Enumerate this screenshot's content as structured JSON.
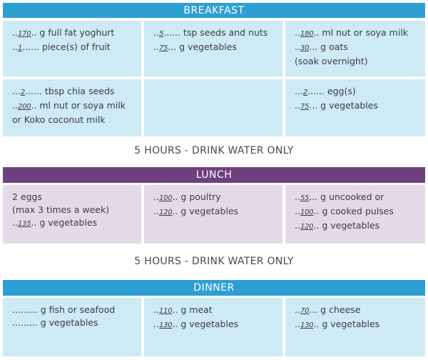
{
  "colors": {
    "breakfast_header": "#2e9fd4",
    "breakfast_cell": "#cdeaf5",
    "lunch_header": "#6e3f7f",
    "lunch_cell": "#e2dbe7",
    "dinner_header": "#2e9fd4",
    "dinner_cell": "#cdeaf5"
  },
  "breakfast": {
    "title": "BREAKFAST",
    "rows": [
      [
        [
          {
            "pre": "..",
            "num": "170",
            "post": ".. g full fat yoghurt"
          },
          {
            "pre": "..",
            "num": "1",
            "post": "...... piece(s) of fruit"
          }
        ],
        [
          {
            "pre": "..",
            "num": "5",
            "post": "...... tsp seeds and nuts"
          },
          {
            "pre": "..",
            "num": "75",
            "post": "... g vegetables"
          }
        ],
        [
          {
            "pre": "..",
            "num": "180",
            "post": ".. ml nut or soya milk"
          },
          {
            "pre": "..",
            "num": "30",
            "post": "... g oats"
          },
          {
            "pre": "",
            "num": "",
            "post": "(soak overnight)"
          }
        ]
      ],
      [
        [
          {
            "pre": "...",
            "num": "2",
            "post": "...... tbsp chia seeds"
          },
          {
            "pre": "..",
            "num": "200",
            "post": ".. ml nut or soya milk"
          },
          {
            "pre": "",
            "num": "",
            "post": "or Koko coconut milk"
          }
        ],
        [],
        [
          {
            "pre": "...",
            "num": "2",
            "post": "...... egg(s)"
          },
          {
            "pre": "..",
            "num": "75",
            "post": "... g vegetables"
          }
        ]
      ]
    ]
  },
  "note1": "5 HOURS - DRINK WATER ONLY",
  "lunch": {
    "title": "LUNCH",
    "rows": [
      [
        [
          {
            "pre": "",
            "num": "",
            "post": "2 eggs"
          },
          {
            "pre": "",
            "num": "",
            "post": "(max 3 times a week)"
          },
          {
            "pre": "..",
            "num": "135",
            "post": ".. g vegetables"
          }
        ],
        [
          {
            "pre": "..",
            "num": "100",
            "post": ".. g poultry"
          },
          {
            "pre": "..",
            "num": "120",
            "post": ".. g vegetables"
          }
        ],
        [
          {
            "pre": "..",
            "num": "55",
            "post": "... g uncooked or"
          },
          {
            "pre": "..",
            "num": "100",
            "post": ".. g cooked pulses"
          },
          {
            "pre": "..",
            "num": "120",
            "post": ".. g vegetables"
          }
        ]
      ]
    ]
  },
  "note2": "5 HOURS - DRINK WATER ONLY",
  "dinner": {
    "title": "DINNER",
    "rows": [
      [
        [
          {
            "pre": "",
            "num": "",
            "post": "......... g fish or seafood"
          },
          {
            "pre": "",
            "num": "",
            "post": "......... g vegetables"
          }
        ],
        [
          {
            "pre": "..",
            "num": "110",
            "post": ".. g meat"
          },
          {
            "pre": "..",
            "num": "130",
            "post": ".. g vegetables"
          }
        ],
        [
          {
            "pre": "..",
            "num": "70",
            "post": "... g cheese"
          },
          {
            "pre": "..",
            "num": "130",
            "post": ".. g vegetables"
          }
        ]
      ]
    ]
  }
}
